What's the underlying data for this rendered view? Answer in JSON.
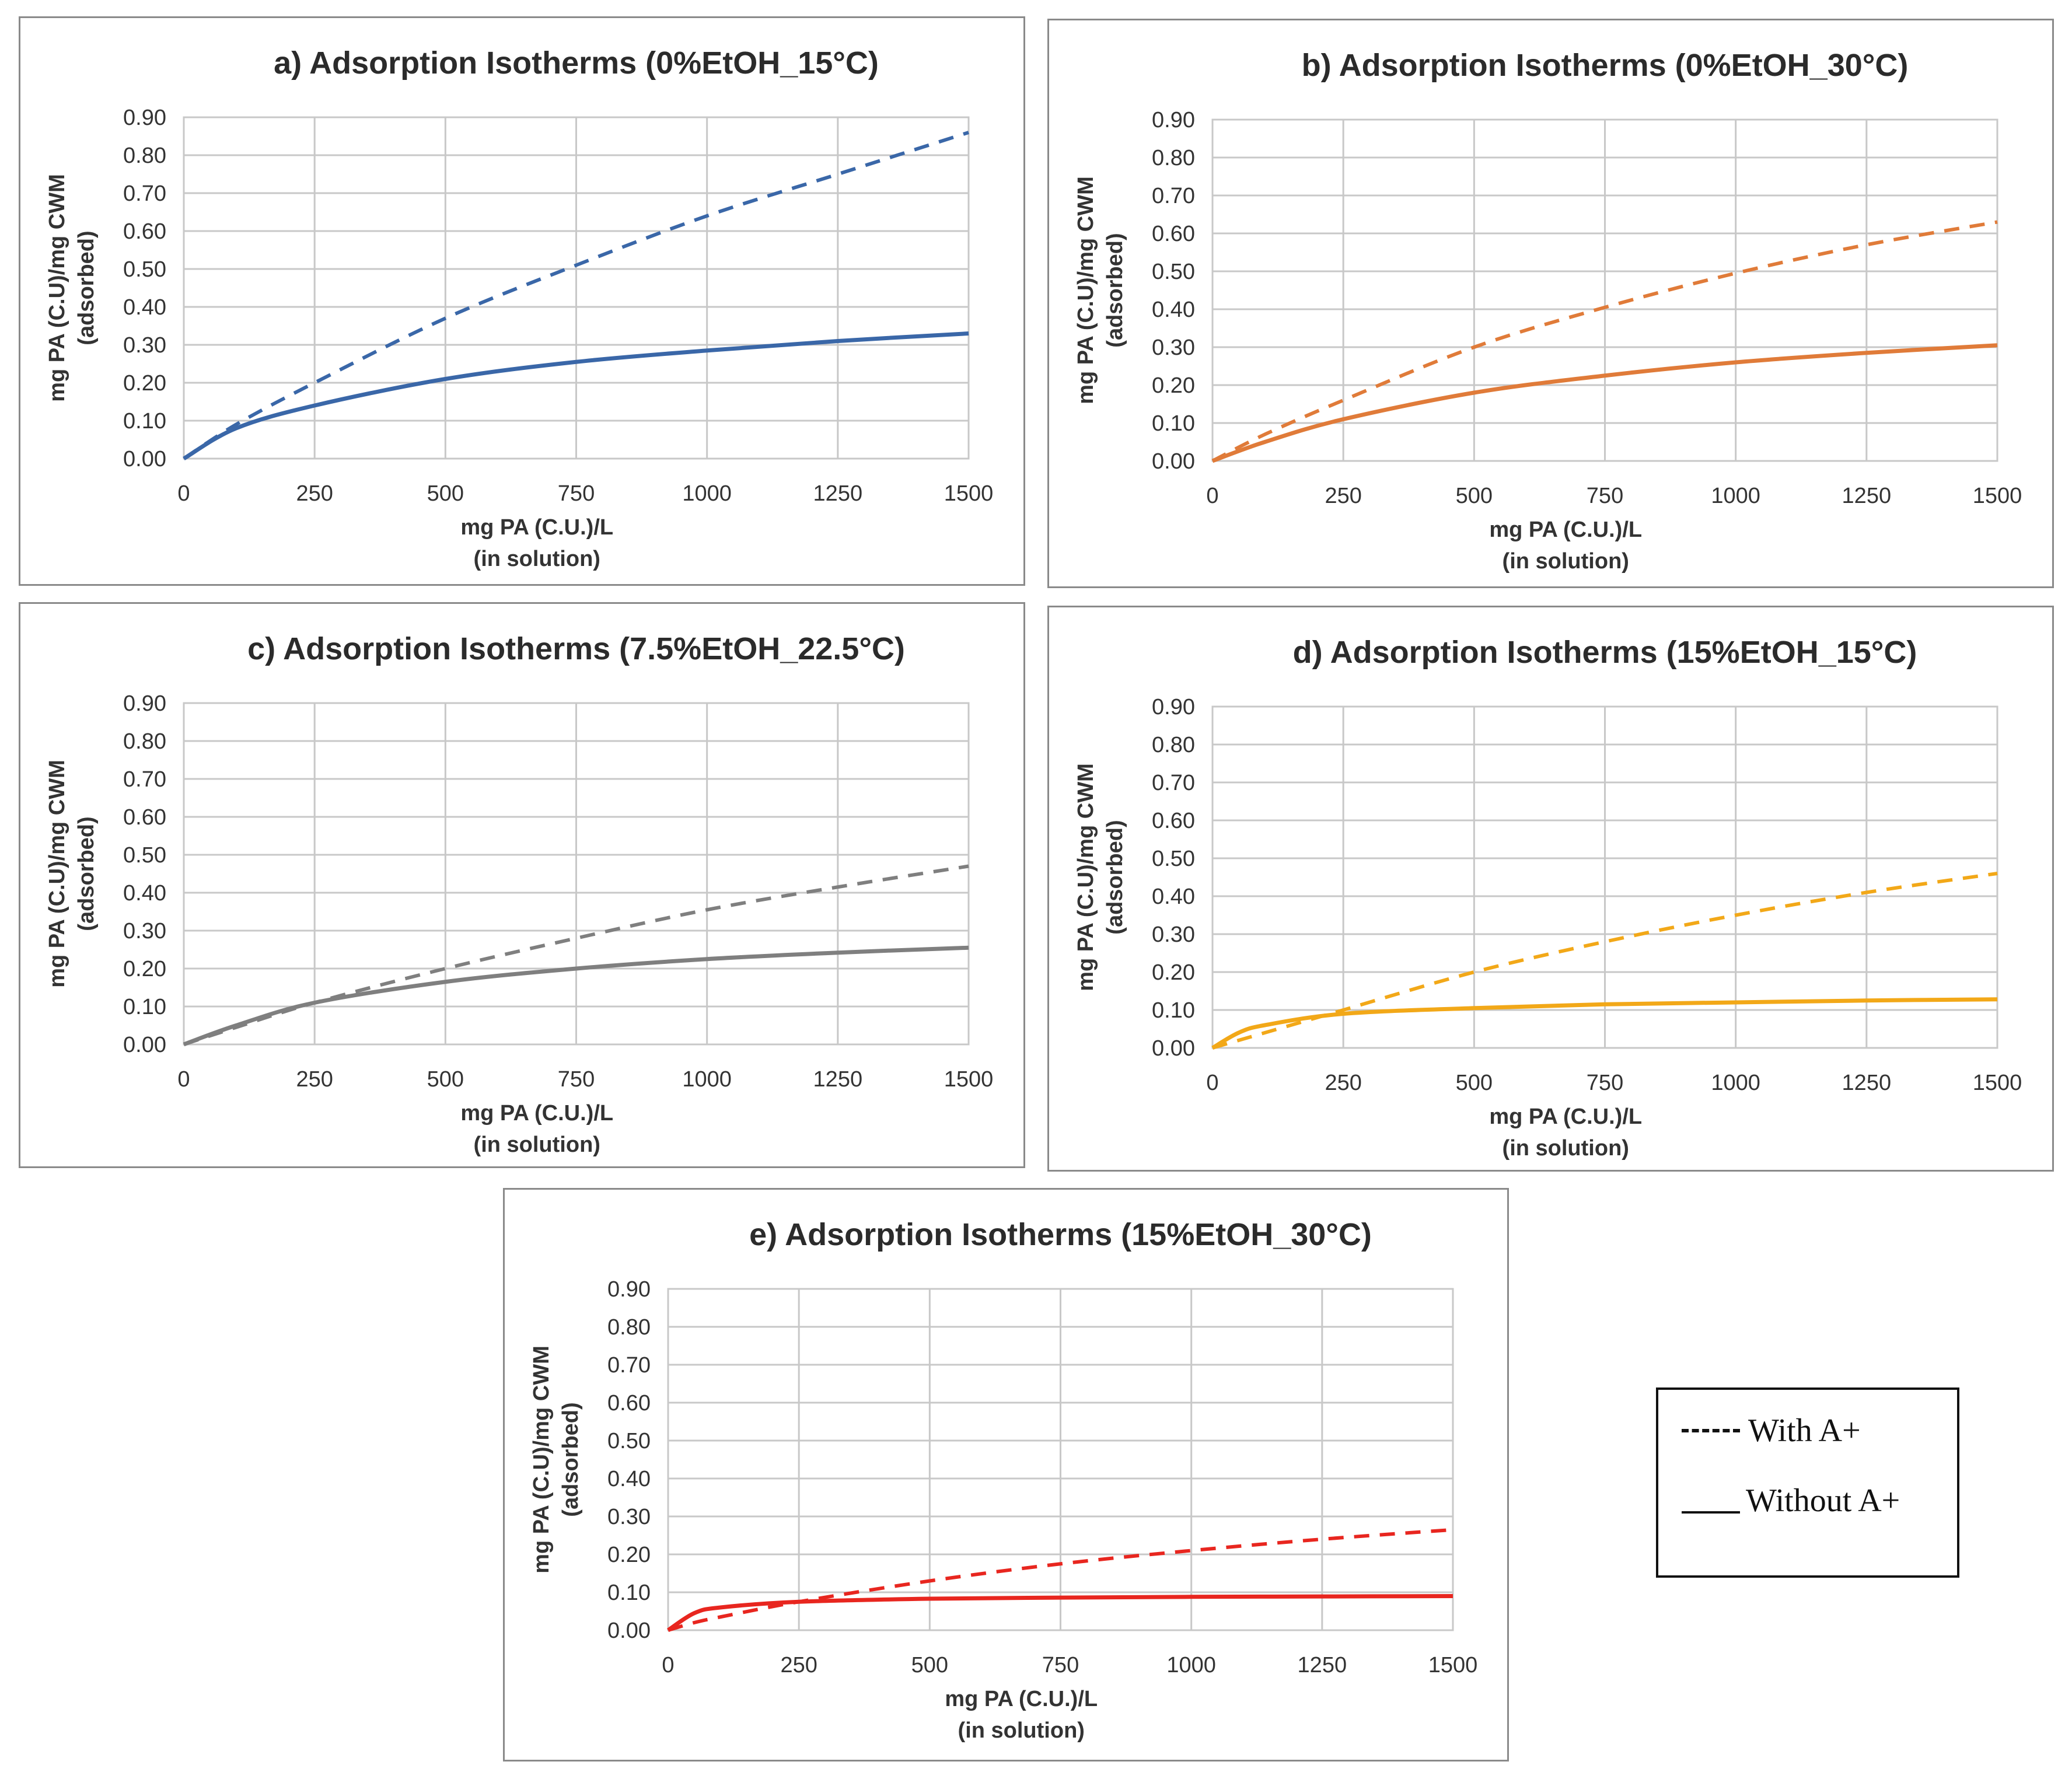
{
  "legend": {
    "with_label": "With A+",
    "without_label": "Without A+"
  },
  "chart_data": [
    {
      "type": "line",
      "title": "a) Adsorption Isotherms (0%EtOH_15°C)",
      "xlabel": [
        "mg PA (C.U.)/L",
        "(in solution)"
      ],
      "ylabel": [
        "mg PA (C.U)/mg CWM",
        "(adsorbed)"
      ],
      "xlim": [
        0,
        1500
      ],
      "ylim": [
        0,
        0.9
      ],
      "x_ticks": [
        "0",
        "250",
        "500",
        "750",
        "1000",
        "1250",
        "1500"
      ],
      "y_ticks": [
        "0.00",
        "0.10",
        "0.20",
        "0.30",
        "0.40",
        "0.50",
        "0.60",
        "0.70",
        "0.80",
        "0.90"
      ],
      "color": "#3a67a8",
      "x": [
        0,
        100,
        250,
        500,
        750,
        1000,
        1250,
        1500
      ],
      "series": [
        {
          "name": "With A+",
          "style": "dashed",
          "values": [
            0,
            0.09,
            0.2,
            0.37,
            0.51,
            0.64,
            0.75,
            0.86
          ]
        },
        {
          "name": "Without A+",
          "style": "solid",
          "values": [
            0,
            0.08,
            0.14,
            0.21,
            0.255,
            0.285,
            0.31,
            0.33
          ]
        }
      ]
    },
    {
      "type": "line",
      "title": "b) Adsorption Isotherms (0%EtOH_30°C)",
      "xlabel": [
        "mg PA (C.U.)/L",
        "(in solution)"
      ],
      "ylabel": [
        "mg PA (C.U)/mg CWM",
        "(adsorbed)"
      ],
      "xlim": [
        0,
        1500
      ],
      "ylim": [
        0,
        0.9
      ],
      "x_ticks": [
        "0",
        "250",
        "500",
        "750",
        "1000",
        "1250",
        "1500"
      ],
      "y_ticks": [
        "0.00",
        "0.10",
        "0.20",
        "0.30",
        "0.40",
        "0.50",
        "0.60",
        "0.70",
        "0.80",
        "0.90"
      ],
      "color": "#e07b39",
      "x": [
        0,
        100,
        250,
        500,
        750,
        1000,
        1250,
        1500
      ],
      "series": [
        {
          "name": "With A+",
          "style": "dashed",
          "values": [
            0,
            0.07,
            0.16,
            0.3,
            0.405,
            0.495,
            0.57,
            0.63
          ]
        },
        {
          "name": "Without A+",
          "style": "solid",
          "values": [
            0,
            0.05,
            0.11,
            0.18,
            0.225,
            0.26,
            0.285,
            0.305
          ]
        }
      ]
    },
    {
      "type": "line",
      "title": "c) Adsorption Isotherms (7.5%EtOH_22.5°C)",
      "xlabel": [
        "mg PA (C.U.)/L",
        "(in solution)"
      ],
      "ylabel": [
        "mg PA (C.U)/mg CWM",
        "(adsorbed)"
      ],
      "xlim": [
        0,
        1500
      ],
      "ylim": [
        0,
        0.9
      ],
      "x_ticks": [
        "0",
        "250",
        "500",
        "750",
        "1000",
        "1250",
        "1500"
      ],
      "y_ticks": [
        "0.00",
        "0.10",
        "0.20",
        "0.30",
        "0.40",
        "0.50",
        "0.60",
        "0.70",
        "0.80",
        "0.90"
      ],
      "color": "#7f7f7f",
      "x": [
        0,
        100,
        250,
        500,
        750,
        1000,
        1250,
        1500
      ],
      "series": [
        {
          "name": "With A+",
          "style": "dashed",
          "values": [
            0,
            0.045,
            0.11,
            0.2,
            0.28,
            0.355,
            0.415,
            0.47
          ]
        },
        {
          "name": "Without A+",
          "style": "solid",
          "values": [
            0,
            0.05,
            0.11,
            0.165,
            0.2,
            0.225,
            0.242,
            0.255
          ]
        }
      ]
    },
    {
      "type": "line",
      "title": "d) Adsorption Isotherms (15%EtOH_15°C)",
      "xlabel": [
        "mg PA (C.U.)/L",
        "(in solution)"
      ],
      "ylabel": [
        "mg PA (C.U)/mg CWM",
        "(adsorbed)"
      ],
      "xlim": [
        0,
        1500
      ],
      "ylim": [
        0,
        0.9
      ],
      "x_ticks": [
        "0",
        "250",
        "500",
        "750",
        "1000",
        "1250",
        "1500"
      ],
      "y_ticks": [
        "0.00",
        "0.10",
        "0.20",
        "0.30",
        "0.40",
        "0.50",
        "0.60",
        "0.70",
        "0.80",
        "0.90"
      ],
      "color": "#f2a818",
      "x": [
        0,
        50,
        100,
        250,
        500,
        750,
        1000,
        1250,
        1500
      ],
      "series": [
        {
          "name": "With A+",
          "style": "dashed",
          "values": [
            0,
            0.02,
            0.04,
            0.1,
            0.2,
            0.28,
            0.35,
            0.41,
            0.46
          ]
        },
        {
          "name": "Without A+",
          "style": "solid",
          "values": [
            0,
            0.04,
            0.06,
            0.09,
            0.105,
            0.115,
            0.12,
            0.125,
            0.128
          ]
        }
      ]
    },
    {
      "type": "line",
      "title": "e) Adsorption Isotherms (15%EtOH_30°C)",
      "xlabel": [
        "mg PA (C.U.)/L",
        "(in solution)"
      ],
      "ylabel": [
        "mg PA (C.U)/mg CWM",
        "(adsorbed)"
      ],
      "xlim": [
        0,
        1500
      ],
      "ylim": [
        0,
        0.9
      ],
      "x_ticks": [
        "0",
        "250",
        "500",
        "750",
        "1000",
        "1250",
        "1500"
      ],
      "y_ticks": [
        "0.00",
        "0.10",
        "0.20",
        "0.30",
        "0.40",
        "0.50",
        "0.60",
        "0.70",
        "0.80",
        "0.90"
      ],
      "color": "#e8261f",
      "x": [
        0,
        50,
        100,
        250,
        500,
        750,
        1000,
        1250,
        1500
      ],
      "series": [
        {
          "name": "With A+",
          "style": "dashed",
          "values": [
            0,
            0.02,
            0.035,
            0.075,
            0.13,
            0.175,
            0.21,
            0.24,
            0.265
          ]
        },
        {
          "name": "Without A+",
          "style": "solid",
          "values": [
            0,
            0.045,
            0.06,
            0.075,
            0.083,
            0.086,
            0.088,
            0.089,
            0.09
          ]
        }
      ]
    }
  ]
}
